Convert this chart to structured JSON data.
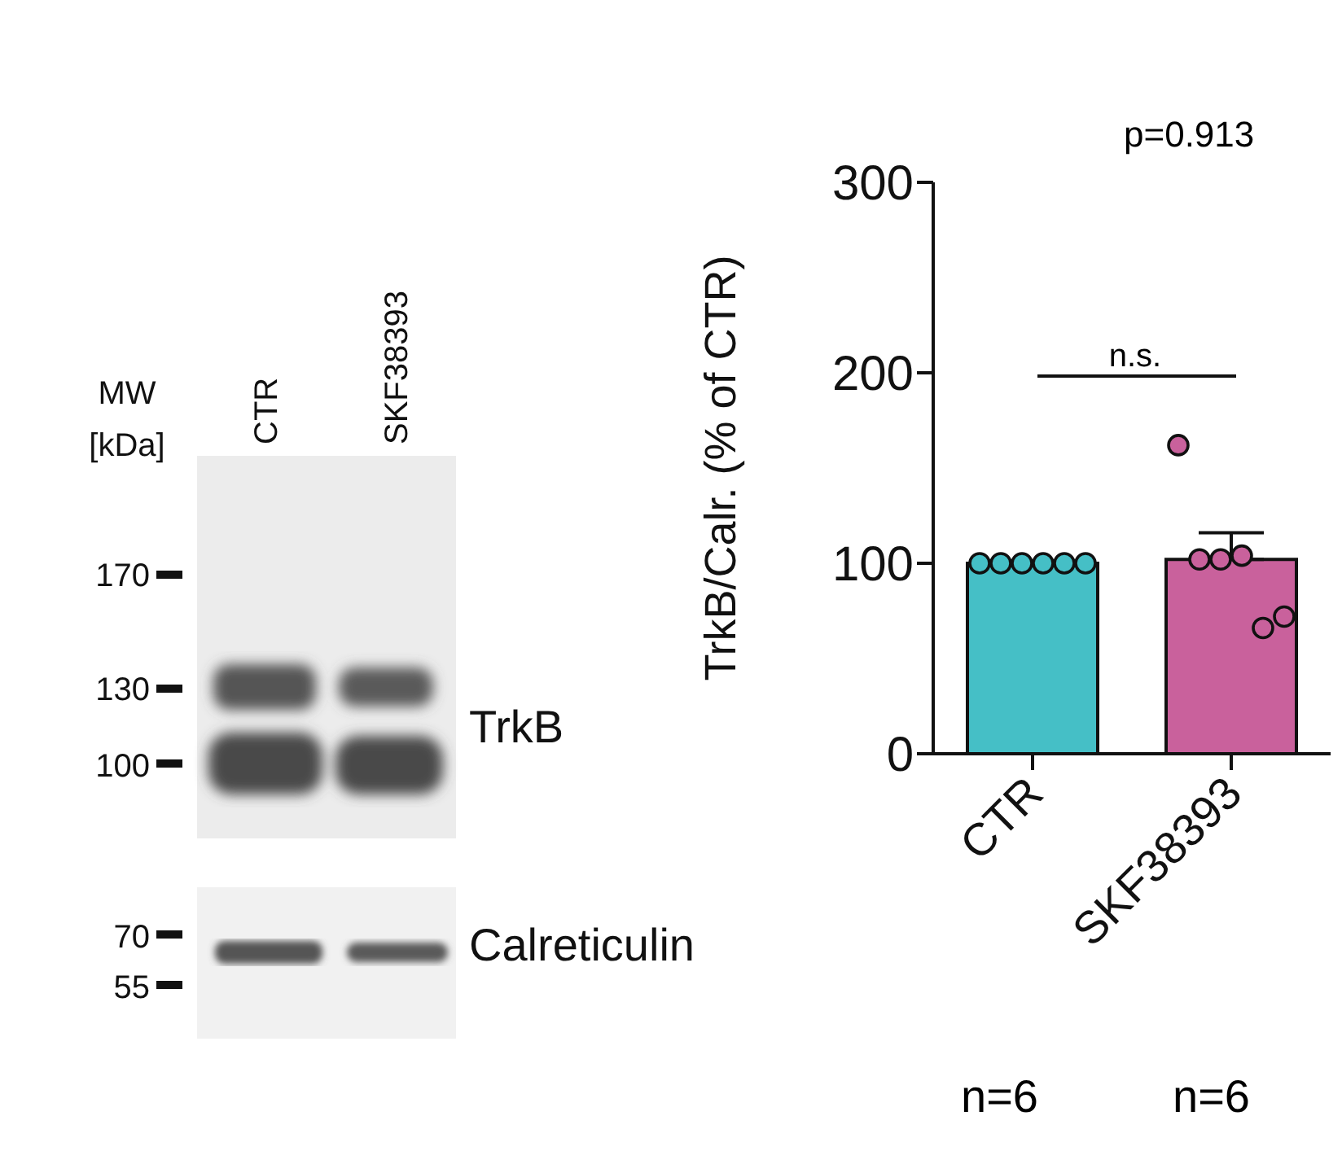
{
  "chart_data": [
    {
      "type": "other",
      "annotations": [
        "MW",
        "[kDa]",
        "CTR",
        "SKF38393",
        "170",
        "130",
        "100",
        "70",
        "55",
        "TrkB",
        "Calreticulin"
      ]
    },
    {
      "type": "bar",
      "ylabel": "TrkB/Calr. (% of CTR)",
      "categories": [
        "CTR",
        "SKF38393"
      ],
      "ylim": [
        0,
        300
      ],
      "yticks": [
        0,
        100,
        200,
        300
      ],
      "grid": false,
      "series": [
        {
          "type": "bar",
          "values": [
            100,
            102
          ],
          "colors": [
            "#45bfc6",
            "#c9619c"
          ],
          "errors": [
            null,
            [
              102,
              116
            ]
          ]
        },
        {
          "type": "scatter",
          "x": [
            "CTR",
            "CTR",
            "CTR",
            "CTR",
            "CTR",
            "CTR",
            "SKF38393",
            "SKF38393",
            "SKF38393",
            "SKF38393",
            "SKF38393",
            "SKF38393"
          ],
          "values": [
            100,
            100,
            100,
            100,
            100,
            100,
            162,
            102,
            102,
            104,
            66,
            72
          ],
          "colors": [
            "#45bfc6",
            "#45bfc6",
            "#45bfc6",
            "#45bfc6",
            "#45bfc6",
            "#45bfc6",
            "#c9619c",
            "#c9619c",
            "#c9619c",
            "#c9619c",
            "#c9619c",
            "#c9619c"
          ]
        }
      ],
      "annotations": [
        "p=0.913",
        "n.s.",
        "n=6",
        "n=6"
      ]
    }
  ]
}
